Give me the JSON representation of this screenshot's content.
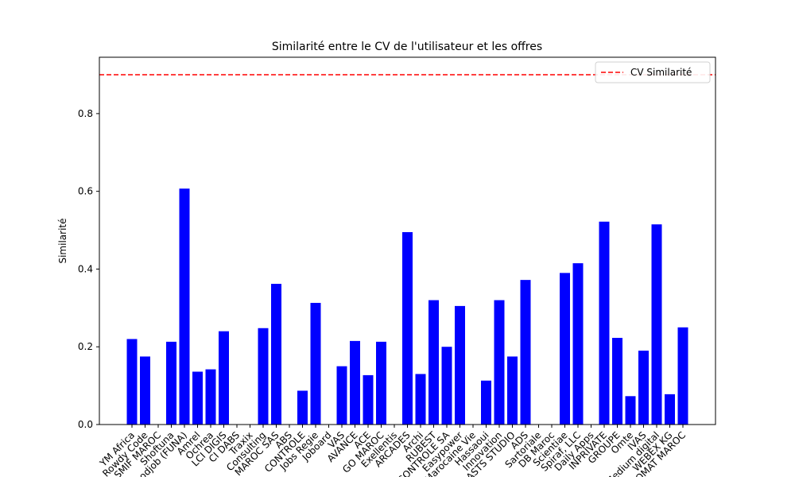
{
  "chart_data": {
    "type": "bar",
    "title": "Similarité entre le CV de l'utilisateur et les offres",
    "ylabel": "Similarité",
    "categories": [
      "YM Africa",
      "Rowdy Code",
      "SMIF MAROC",
      "Shoftuna",
      "Hoodjob (FUNA)",
      "Amrel",
      "Ochrea",
      "LCI DIGIS",
      "CI DABS",
      "Traxix",
      "Consulting",
      "MAROC SAS",
      "ABS",
      "CONTROLE",
      "Jobs Regie",
      "Joboard",
      "VAS",
      "AVANCE",
      "ACE",
      "GO MAROC",
      "Exellentis",
      "ARCADES",
      "Archi",
      "RUBEST",
      "CONTROLE SA",
      "Easypower",
      "Marocaine Vie",
      "Hassaoui",
      "Innovation",
      "ASTS STUDIO",
      "ADS",
      "Sartoriale",
      "DB Maroc",
      "Scientiae",
      "Spiraf, LLC",
      "Daily Apps",
      "INPRIVATE",
      "GROUPE",
      "Omte",
      "IVAS",
      "Medium digital",
      "WEBEX KG",
      "PROMAT MAROC"
    ],
    "values": [
      0.22,
      0.175,
      0,
      0.213,
      0.607,
      0.136,
      0.142,
      0.24,
      0,
      0,
      0.248,
      0.362,
      0,
      0.087,
      0.313,
      0,
      0.15,
      0.215,
      0.127,
      0.213,
      0,
      0.495,
      0.13,
      0.32,
      0.2,
      0.305,
      0,
      0.113,
      0.32,
      0.175,
      0.372,
      0,
      0,
      0.39,
      0.415,
      0,
      0.522,
      0.223,
      0.073,
      0.19,
      0.515,
      0.078,
      0.25
    ],
    "color": "#0000ff",
    "reference": {
      "name": "CV Similarité",
      "value": 0.9,
      "color": "#ff0000"
    },
    "legend": "upper right",
    "ylim": [
      0,
      0.945
    ],
    "yticks": [
      {
        "value": 0,
        "label": "0.0"
      },
      0.2,
      0.4,
      0.6,
      0.8
    ]
  }
}
